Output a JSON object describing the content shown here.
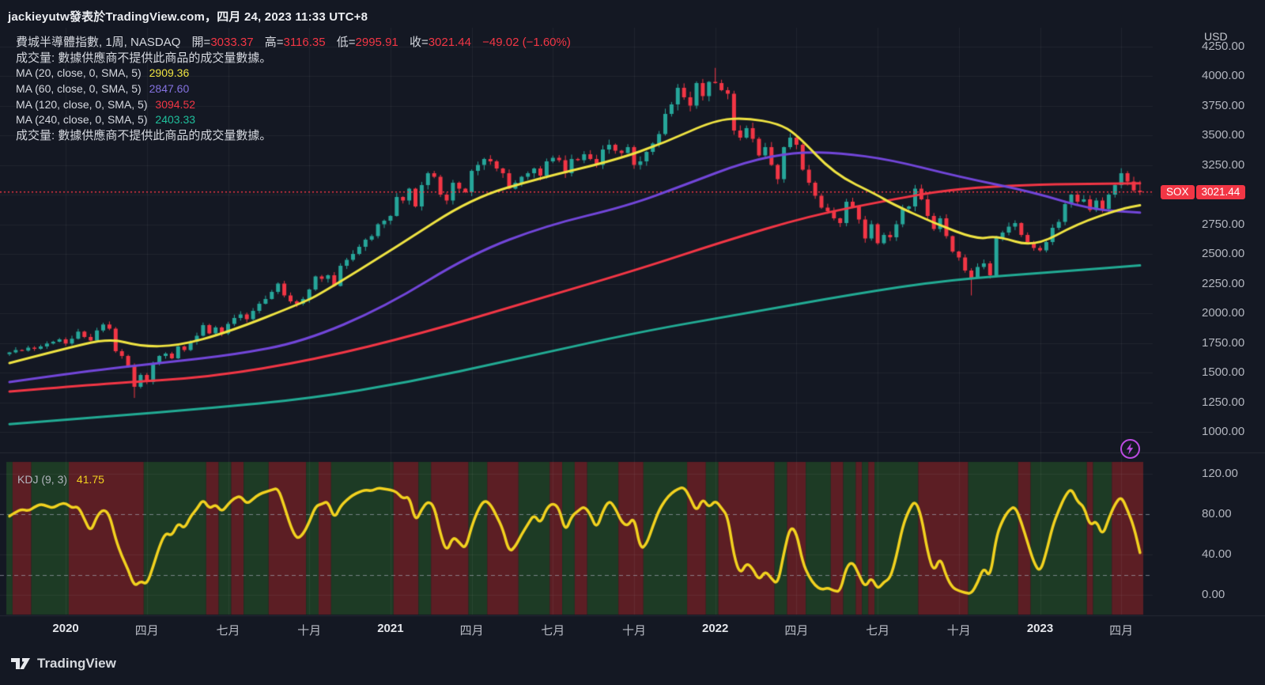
{
  "header": {
    "attribution": "jackieyutw發表於TradingView.com，四月 24, 2023 11:33 UTC+8"
  },
  "legend": {
    "title_row": {
      "symbol_interval_exchange": "費城半導體指數, 1周, NASDAQ",
      "open_label": "開=",
      "open": "3033.37",
      "high_label": "高=",
      "high": "3116.35",
      "low_label": "低=",
      "low": "2995.91",
      "close_label": "收=",
      "close": "3021.44",
      "change": "−49.02 (−1.60%)"
    },
    "volume_note": "成交量: 數據供應商不提供此商品的成交量數據。",
    "ma_rows": [
      {
        "label": "MA (20, close, 0, SMA, 5)",
        "value": "2909.36",
        "color": "#efe342"
      },
      {
        "label": "MA (60, close, 0, SMA, 5)",
        "value": "2847.60",
        "color": "#8472e0"
      },
      {
        "label": "MA (120, close, 0, SMA, 5)",
        "value": "3094.52",
        "color": "#f23645"
      },
      {
        "label": "MA (240, close, 0, SMA, 5)",
        "value": "2403.33",
        "color": "#1fbf9c"
      }
    ],
    "volume_note_2": "成交量: 數據供應商不提供此商品的成交量數據。"
  },
  "price_axis": {
    "currency": "USD",
    "ticks": [
      4250,
      4000,
      3750,
      3500,
      3250,
      2750,
      2500,
      2250,
      2000,
      1750,
      1500,
      1250,
      1000
    ],
    "last_price_badge": {
      "symbol": "SOX",
      "price": "3021.44",
      "color": "#f23645"
    }
  },
  "time_axis": {
    "labels": [
      {
        "week": 9,
        "text": "2020",
        "year": true
      },
      {
        "week": 22,
        "text": "四月"
      },
      {
        "week": 35,
        "text": "七月"
      },
      {
        "week": 48,
        "text": "十月"
      },
      {
        "week": 61,
        "text": "2021",
        "year": true
      },
      {
        "week": 74,
        "text": "四月"
      },
      {
        "week": 87,
        "text": "七月"
      },
      {
        "week": 100,
        "text": "十月"
      },
      {
        "week": 113,
        "text": "2022",
        "year": true
      },
      {
        "week": 126,
        "text": "四月"
      },
      {
        "week": 139,
        "text": "七月"
      },
      {
        "week": 152,
        "text": "十月"
      },
      {
        "week": 165,
        "text": "2023",
        "year": true
      },
      {
        "week": 178,
        "text": "四月"
      }
    ]
  },
  "footer": {
    "brand": "TradingView"
  },
  "flash_button": {
    "color": "#bb4be0"
  },
  "chart_data": {
    "type": "candlestick",
    "title": "費城半導體指數 (SOX) · 1周 · NASDAQ",
    "interval": "1W",
    "weeks": 182,
    "start": "2019-11",
    "end": "2023-04",
    "ylim": [
      1000,
      4400
    ],
    "up_color": "#26a69a",
    "down_color": "#f23645",
    "first_open": 1655,
    "closes": [
      1670,
      1690,
      1685,
      1710,
      1700,
      1720,
      1745,
      1760,
      1780,
      1745,
      1785,
      1845,
      1800,
      1770,
      1855,
      1905,
      1870,
      1680,
      1640,
      1560,
      1380,
      1480,
      1420,
      1580,
      1640,
      1660,
      1620,
      1720,
      1690,
      1760,
      1810,
      1900,
      1830,
      1880,
      1830,
      1910,
      1960,
      1990,
      1950,
      2020,
      2080,
      2120,
      2180,
      2250,
      2150,
      2100,
      2080,
      2120,
      2200,
      2310,
      2290,
      2320,
      2230,
      2400,
      2450,
      2500,
      2560,
      2620,
      2650,
      2750,
      2780,
      2820,
      2980,
      2950,
      3050,
      2900,
      3080,
      3180,
      3150,
      3000,
      2950,
      3100,
      3050,
      3020,
      3200,
      3250,
      3300,
      3280,
      3220,
      3180,
      3050,
      3100,
      3150,
      3180,
      3220,
      3160,
      3280,
      3310,
      3290,
      3180,
      3300,
      3290,
      3340,
      3300,
      3250,
      3380,
      3420,
      3370,
      3350,
      3400,
      3250,
      3280,
      3360,
      3430,
      3510,
      3680,
      3760,
      3900,
      3820,
      3750,
      3940,
      3830,
      3950,
      3940,
      3880,
      3850,
      3540,
      3480,
      3560,
      3470,
      3330,
      3400,
      3250,
      3130,
      3400,
      3480,
      3420,
      3210,
      3100,
      2990,
      2890,
      2860,
      2800,
      2760,
      2940,
      2900,
      2790,
      2630,
      2750,
      2590,
      2660,
      2640,
      2750,
      2880,
      2900,
      3050,
      2960,
      2820,
      2710,
      2800,
      2650,
      2520,
      2470,
      2360,
      2300,
      2390,
      2420,
      2320,
      2640,
      2680,
      2730,
      2760,
      2660,
      2600,
      2550,
      2530,
      2600,
      2720,
      2770,
      2920,
      3000,
      2940,
      2960,
      2870,
      2950,
      2880,
      3000,
      3080,
      3180,
      3110,
      3035,
      3021.44
    ],
    "candle_overrides": {
      "20": {
        "low": 1286
      },
      "113": {
        "high": 4068
      },
      "154": {
        "low": 2150
      },
      "181": {
        "open": 3033.37,
        "high": 3116.35,
        "low": 2995.91,
        "close": 3021.44
      }
    },
    "last_candle": {
      "open": 3033.37,
      "high": 3116.35,
      "low": 2995.91,
      "close": 3021.44,
      "change": -49.02,
      "change_pct": -1.6
    },
    "price_line": {
      "value": 3021.44,
      "color": "#f23645"
    },
    "price_gridlines": [
      1000,
      1250,
      1500,
      1750,
      2000,
      2250,
      2500,
      2750,
      3000,
      3250,
      3500,
      3750,
      4000,
      4250
    ],
    "ma_series": [
      {
        "name": "MA20",
        "period": 20,
        "color": "#efe342",
        "current": 2909.36,
        "points": [
          [
            0,
            1580
          ],
          [
            8,
            1690
          ],
          [
            16,
            1790
          ],
          [
            21,
            1720
          ],
          [
            27,
            1725
          ],
          [
            35,
            1840
          ],
          [
            47,
            2090
          ],
          [
            50,
            2170
          ],
          [
            62,
            2560
          ],
          [
            74,
            2970
          ],
          [
            85,
            3140
          ],
          [
            97,
            3290
          ],
          [
            105,
            3440
          ],
          [
            113,
            3630
          ],
          [
            118,
            3645
          ],
          [
            123,
            3600
          ],
          [
            126,
            3510
          ],
          [
            132,
            3175
          ],
          [
            139,
            2995
          ],
          [
            141,
            2930
          ],
          [
            148,
            2760
          ],
          [
            155,
            2620
          ],
          [
            158,
            2655
          ],
          [
            164,
            2555
          ],
          [
            171,
            2755
          ],
          [
            178,
            2880
          ],
          [
            181,
            2909.36
          ]
        ]
      },
      {
        "name": "MA60",
        "period": 60,
        "color": "#7246d9",
        "current": 2847.6,
        "points": [
          [
            0,
            1420
          ],
          [
            12,
            1510
          ],
          [
            24,
            1580
          ],
          [
            36,
            1650
          ],
          [
            47,
            1760
          ],
          [
            60,
            2050
          ],
          [
            74,
            2500
          ],
          [
            86,
            2740
          ],
          [
            99,
            2905
          ],
          [
            108,
            3080
          ],
          [
            118,
            3280
          ],
          [
            126,
            3360
          ],
          [
            133,
            3350
          ],
          [
            141,
            3295
          ],
          [
            152,
            3150
          ],
          [
            164,
            3020
          ],
          [
            173,
            2875
          ],
          [
            181,
            2847.6
          ]
        ]
      },
      {
        "name": "MA120",
        "period": 120,
        "color": "#f23645",
        "current": 3094.52,
        "points": [
          [
            0,
            1340
          ],
          [
            16,
            1410
          ],
          [
            32,
            1460
          ],
          [
            49,
            1610
          ],
          [
            66,
            1830
          ],
          [
            84,
            2110
          ],
          [
            101,
            2375
          ],
          [
            114,
            2600
          ],
          [
            128,
            2820
          ],
          [
            141,
            2955
          ],
          [
            150,
            3040
          ],
          [
            160,
            3078
          ],
          [
            170,
            3090
          ],
          [
            181,
            3094.52
          ]
        ]
      },
      {
        "name": "MA240",
        "period": 240,
        "color": "#22ab94",
        "current": 2403.33,
        "points": [
          [
            0,
            1065
          ],
          [
            16,
            1130
          ],
          [
            32,
            1200
          ],
          [
            48,
            1280
          ],
          [
            64,
            1420
          ],
          [
            80,
            1600
          ],
          [
            101,
            1845
          ],
          [
            118,
            2000
          ],
          [
            135,
            2160
          ],
          [
            150,
            2280
          ],
          [
            168,
            2350
          ],
          [
            181,
            2403.33
          ]
        ]
      }
    ],
    "kdj": {
      "label": "KDJ (9, 3)",
      "current": 41.75,
      "color": "#f2d21f",
      "ticks": [
        120,
        80,
        40,
        0
      ],
      "gridlines_solid": [
        120,
        40,
        0
      ],
      "gridlines_dashed": [
        80,
        20
      ],
      "band_up_color": "#1d3b25",
      "band_down_color": "#5c1e24",
      "values": [
        78,
        82,
        85,
        83,
        87,
        90,
        88,
        86,
        90,
        91,
        86,
        88,
        75,
        62,
        78,
        85,
        80,
        55,
        38,
        25,
        8,
        14,
        10,
        28,
        48,
        62,
        58,
        72,
        65,
        78,
        85,
        95,
        85,
        90,
        82,
        90,
        96,
        98,
        90,
        95,
        100,
        102,
        104,
        106,
        88,
        68,
        55,
        60,
        72,
        88,
        90,
        93,
        75,
        88,
        94,
        99,
        102,
        104,
        103,
        106,
        105,
        104,
        102,
        95,
        98,
        72,
        85,
        93,
        88,
        60,
        42,
        58,
        52,
        45,
        68,
        84,
        94,
        90,
        78,
        65,
        42,
        48,
        60,
        70,
        80,
        70,
        86,
        91,
        86,
        62,
        78,
        83,
        88,
        80,
        65,
        83,
        94,
        86,
        72,
        68,
        78,
        45,
        50,
        68,
        84,
        94,
        101,
        105,
        107,
        96,
        82,
        96,
        86,
        94,
        86,
        78,
        38,
        20,
        32,
        26,
        14,
        24,
        16,
        10,
        42,
        68,
        62,
        32,
        18,
        9,
        5,
        7,
        4,
        3,
        28,
        33,
        20,
        7,
        18,
        5,
        13,
        16,
        38,
        68,
        84,
        94,
        78,
        42,
        22,
        38,
        18,
        7,
        4,
        2,
        1,
        12,
        28,
        16,
        58,
        74,
        84,
        88,
        72,
        52,
        32,
        22,
        42,
        68,
        84,
        98,
        106,
        92,
        88,
        68,
        74,
        58,
        76,
        90,
        98,
        84,
        68,
        41.75
      ],
      "bands": [
        [
          0,
          1,
          "g"
        ],
        [
          1,
          4,
          "r"
        ],
        [
          4,
          10,
          "g"
        ],
        [
          10,
          22,
          "r"
        ],
        [
          22,
          32,
          "g"
        ],
        [
          32,
          34,
          "r"
        ],
        [
          34,
          36,
          "g"
        ],
        [
          36,
          38,
          "r"
        ],
        [
          38,
          42,
          "g"
        ],
        [
          42,
          48,
          "r"
        ],
        [
          48,
          50,
          "g"
        ],
        [
          50,
          52,
          "r"
        ],
        [
          52,
          62,
          "g"
        ],
        [
          62,
          66,
          "r"
        ],
        [
          66,
          68,
          "g"
        ],
        [
          68,
          74,
          "r"
        ],
        [
          74,
          77,
          "g"
        ],
        [
          77,
          82,
          "r"
        ],
        [
          82,
          87,
          "g"
        ],
        [
          87,
          89,
          "r"
        ],
        [
          89,
          91,
          "g"
        ],
        [
          91,
          93,
          "r"
        ],
        [
          93,
          98,
          "g"
        ],
        [
          98,
          102,
          "r"
        ],
        [
          102,
          109,
          "g"
        ],
        [
          109,
          112,
          "r"
        ],
        [
          112,
          114,
          "g"
        ],
        [
          114,
          123,
          "r"
        ],
        [
          123,
          125,
          "g"
        ],
        [
          125,
          128,
          "r"
        ],
        [
          128,
          132,
          "g"
        ],
        [
          132,
          134,
          "r"
        ],
        [
          134,
          136,
          "g"
        ],
        [
          136,
          137,
          "r"
        ],
        [
          137,
          138,
          "g"
        ],
        [
          138,
          139,
          "r"
        ],
        [
          139,
          146,
          "g"
        ],
        [
          146,
          154,
          "r"
        ],
        [
          154,
          162,
          "g"
        ],
        [
          162,
          164,
          "r"
        ],
        [
          164,
          173,
          "g"
        ],
        [
          173,
          174,
          "r"
        ],
        [
          174,
          177,
          "g"
        ],
        [
          177,
          181,
          "r"
        ]
      ]
    }
  }
}
